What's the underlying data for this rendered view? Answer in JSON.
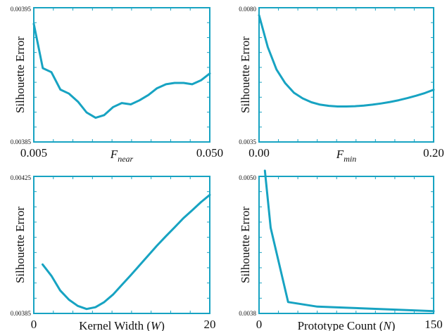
{
  "colors": {
    "line": "#17a3c2",
    "text": "#111111"
  },
  "chart_data": [
    {
      "type": "line",
      "ylabel": "Silhouette Error",
      "xlabel": {
        "main": "F",
        "sub": "near",
        "italic": true
      },
      "xlim": [
        0.005,
        0.05
      ],
      "ylim": [
        0.00385,
        0.00395
      ],
      "x_tick_labels": [
        "0.005",
        "0.050"
      ],
      "y_tick_labels": [
        "0.00395",
        "0.00385"
      ],
      "x": [
        0.005,
        0.0073,
        0.0095,
        0.0118,
        0.014,
        0.0163,
        0.0185,
        0.0208,
        0.023,
        0.0253,
        0.0275,
        0.0298,
        0.032,
        0.0343,
        0.0365,
        0.0388,
        0.041,
        0.0433,
        0.0455,
        0.0478,
        0.05
      ],
      "y": [
        0.003938,
        0.003905,
        0.003902,
        0.003889,
        0.003886,
        0.00388,
        0.003872,
        0.003868,
        0.00387,
        0.003876,
        0.003879,
        0.003878,
        0.003881,
        0.003885,
        0.00389,
        0.003893,
        0.003894,
        0.003894,
        0.003893,
        0.003896,
        0.003901
      ]
    },
    {
      "type": "line",
      "ylabel": "Silhouette Error",
      "xlabel": {
        "main": "F",
        "sub": "min",
        "italic": true
      },
      "xlim": [
        0.0,
        0.2
      ],
      "ylim": [
        0.0035,
        0.008
      ],
      "x_tick_labels": [
        "0.00",
        "0.20"
      ],
      "y_tick_labels": [
        "0.0080",
        "0.0035"
      ],
      "x": [
        0.0,
        0.01,
        0.02,
        0.03,
        0.04,
        0.05,
        0.06,
        0.07,
        0.08,
        0.09,
        0.1,
        0.11,
        0.12,
        0.13,
        0.14,
        0.15,
        0.16,
        0.17,
        0.18,
        0.19,
        0.2
      ],
      "y": [
        0.00775,
        0.00668,
        0.00593,
        0.00547,
        0.00515,
        0.00496,
        0.00483,
        0.00475,
        0.00471,
        0.00469,
        0.00469,
        0.0047,
        0.00472,
        0.00475,
        0.00479,
        0.00484,
        0.0049,
        0.00497,
        0.00505,
        0.00514,
        0.00525
      ]
    },
    {
      "type": "line",
      "ylabel": "Silhouette Error",
      "xlabel": {
        "main": "Kernel Width (",
        "var": "W",
        "tail": ")"
      },
      "xlim": [
        0,
        20
      ],
      "ylim": [
        0.00385,
        0.00425
      ],
      "x_tick_labels": [
        "0",
        "20"
      ],
      "y_tick_labels": [
        "0.00425",
        "0.00385"
      ],
      "x": [
        1,
        2,
        3,
        4,
        5,
        6,
        7,
        8,
        9,
        10,
        11,
        12,
        13,
        14,
        15,
        16,
        17,
        18,
        19,
        20
      ],
      "y": [
        0.003993,
        0.00396,
        0.003917,
        0.00389,
        0.003872,
        0.003863,
        0.003868,
        0.003883,
        0.003905,
        0.003933,
        0.003961,
        0.00399,
        0.004019,
        0.004048,
        0.004075,
        0.004101,
        0.004128,
        0.004151,
        0.004175,
        0.004196
      ]
    },
    {
      "type": "line",
      "ylabel": "Silhouette Error",
      "xlabel": {
        "main": "Prototype Count (",
        "var": "N",
        "tail": ")"
      },
      "xlim": [
        0,
        150
      ],
      "ylim": [
        0.0038,
        0.005
      ],
      "x_tick_labels": [
        "0",
        "150"
      ],
      "y_tick_labels": [
        "0.0050",
        "0.0038"
      ],
      "x": [
        5,
        10,
        25,
        50,
        75,
        100,
        125,
        150
      ],
      "y": [
        0.00505,
        0.00455,
        0.0039,
        0.00386,
        0.00385,
        0.00384,
        0.00383,
        0.00382
      ]
    }
  ]
}
